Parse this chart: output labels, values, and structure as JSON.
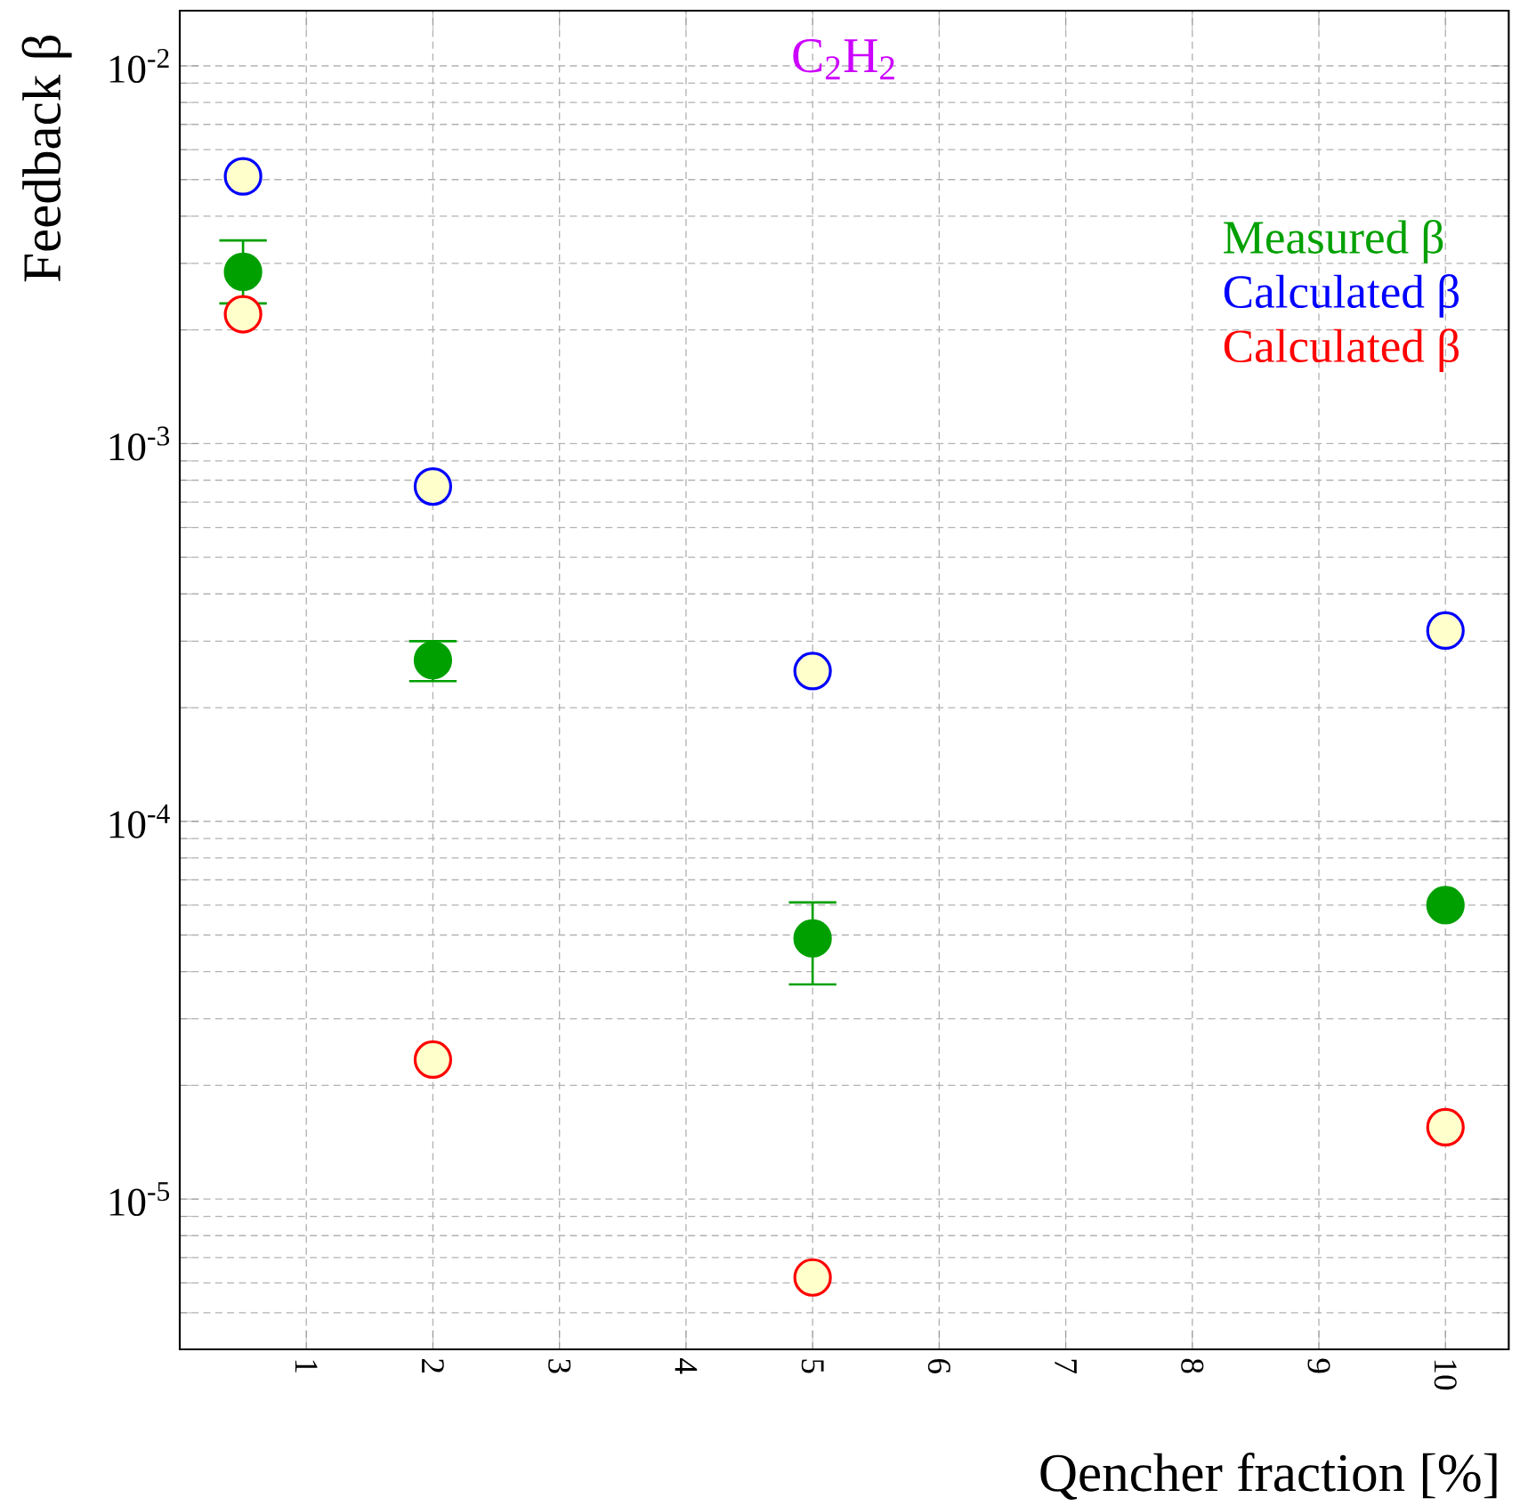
{
  "chart_data": {
    "type": "scatter",
    "xlabel": "Qencher fraction [%]",
    "ylabel": "Feedback β",
    "annotations": [
      "C$_{2}$H$_{2}$"
    ],
    "x": [
      0.5,
      2,
      5,
      10
    ],
    "series": [
      {
        "name": "Measured β",
        "color": "#00a000",
        "values": [
          0.00285,
          0.000267,
          4.9e-05,
          6e-05
        ],
        "errors": [
          [
            0.00235,
            0.00345
          ],
          [
            0.000235,
            0.0003
          ],
          [
            3.7e-05,
            6.1e-05
          ],
          null
        ]
      },
      {
        "name": "Calculated β",
        "color": "#0000ff",
        "values": [
          0.0051,
          0.00077,
          0.00025,
          0.00032
        ]
      },
      {
        "name": "Calculated β",
        "color": "#ff0000",
        "values": [
          0.0022,
          2.34e-05,
          6.2e-06,
          1.55e-05
        ]
      }
    ],
    "xlim": [
      0,
      10.5
    ],
    "xticks": [
      1,
      2,
      3,
      4,
      5,
      6,
      7,
      8,
      9,
      10
    ],
    "ylim": [
      4e-06,
      0.014
    ],
    "log": "y",
    "yticks": [
      {
        "value": 1e-05,
        "label": "10$^{-5}$"
      },
      {
        "value": 0.0001,
        "label": "10$^{-4}$"
      },
      {
        "value": 0.001,
        "label": "10$^{-3}$"
      },
      {
        "value": 0.01,
        "label": "10$^{-2}$"
      }
    ],
    "grid": true,
    "legend": "top right"
  }
}
